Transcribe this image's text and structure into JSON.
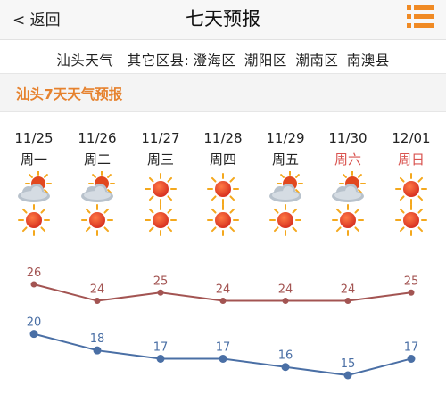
{
  "nav": {
    "back_label": "< 返回",
    "title": "七天预报"
  },
  "districts": {
    "current": "汕头天气",
    "others_label": "其它区县:",
    "items": [
      "澄海区",
      "潮阳区",
      "潮南区",
      "南澳县"
    ]
  },
  "forecast": {
    "title": "汕头7天天气预报",
    "days": [
      {
        "date": "11/25",
        "weekday": "周一",
        "day_icon": "partly-cloudy-icon",
        "night_icon": "sunny-icon",
        "weekend": false
      },
      {
        "date": "11/26",
        "weekday": "周二",
        "day_icon": "partly-cloudy-icon",
        "night_icon": "sunny-icon",
        "weekend": false
      },
      {
        "date": "11/27",
        "weekday": "周三",
        "day_icon": "sunny-icon",
        "night_icon": "sunny-icon",
        "weekend": false
      },
      {
        "date": "11/28",
        "weekday": "周四",
        "day_icon": "sunny-icon",
        "night_icon": "sunny-icon",
        "weekend": false
      },
      {
        "date": "11/29",
        "weekday": "周五",
        "day_icon": "partly-cloudy-icon",
        "night_icon": "sunny-icon",
        "weekend": false
      },
      {
        "date": "11/30",
        "weekday": "周六",
        "day_icon": "partly-cloudy-icon",
        "night_icon": "sunny-icon",
        "weekend": true
      },
      {
        "date": "12/01",
        "weekday": "周日",
        "day_icon": "sunny-icon",
        "night_icon": "sunny-icon",
        "weekend": true
      }
    ]
  },
  "chart_data": {
    "type": "line",
    "categories": [
      "11/25",
      "11/26",
      "11/27",
      "11/28",
      "11/29",
      "11/30",
      "12/01"
    ],
    "series": [
      {
        "values": [
          26,
          24,
          25,
          24,
          24,
          24,
          25
        ],
        "color": "#a35452"
      },
      {
        "values": [
          20,
          18,
          17,
          17,
          16,
          15,
          17
        ],
        "color": "#4a6fa5"
      }
    ],
    "ylim": [
      13,
      28
    ],
    "grid": false
  },
  "colors": {
    "accent": "#f08a24",
    "weekend": "#d9534f",
    "high_line": "#a35452",
    "low_line": "#4a6fa5"
  }
}
